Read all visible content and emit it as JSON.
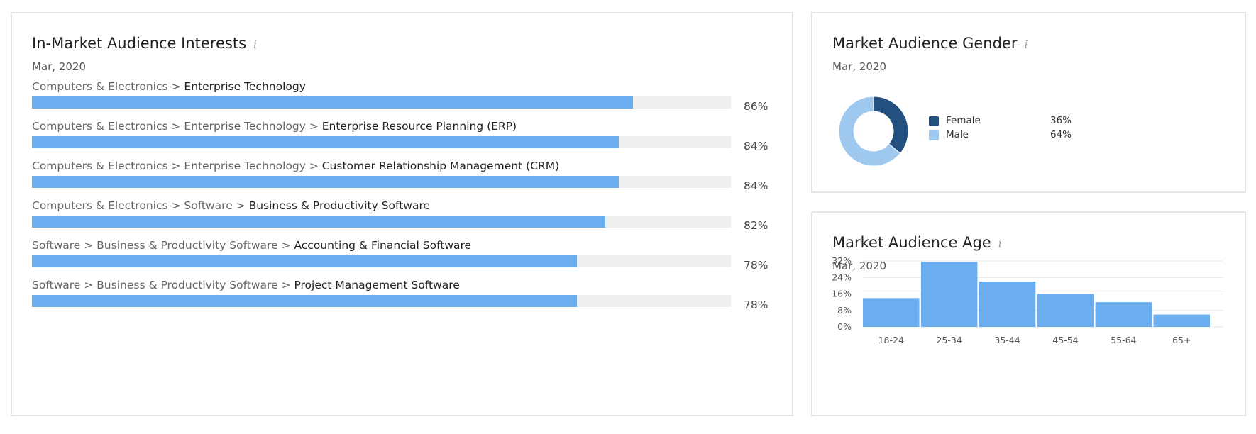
{
  "interests": {
    "title": "In-Market Audience Interests",
    "info_icon": "i",
    "date": "Mar, 2020",
    "rows": [
      {
        "path": [
          "Computers & Electronics"
        ],
        "leaf": "Enterprise Technology",
        "value": 86,
        "label": "86%"
      },
      {
        "path": [
          "Computers & Electronics",
          "Enterprise Technology"
        ],
        "leaf": "Enterprise Resource Planning (ERP)",
        "value": 84,
        "label": "84%"
      },
      {
        "path": [
          "Computers & Electronics",
          "Enterprise Technology"
        ],
        "leaf": "Customer Relationship Management (CRM)",
        "value": 84,
        "label": "84%"
      },
      {
        "path": [
          "Computers & Electronics",
          "Software"
        ],
        "leaf": "Business & Productivity Software",
        "value": 82,
        "label": "82%"
      },
      {
        "path": [
          "Software",
          "Business & Productivity Software"
        ],
        "leaf": "Accounting & Financial Software",
        "value": 78,
        "label": "78%"
      },
      {
        "path": [
          "Software",
          "Business & Productivity Software"
        ],
        "leaf": "Project Management Software",
        "value": 78,
        "label": "78%"
      }
    ],
    "bar_color": "#6aaef0",
    "track_color": "#efefef"
  },
  "gender": {
    "title": "Market Audience Gender",
    "info_icon": "i",
    "date": "Mar, 2020",
    "legend": [
      {
        "name": "Female",
        "value_label": "36%",
        "color": "#24507f"
      },
      {
        "name": "Male",
        "value_label": "64%",
        "color": "#9fc8ee"
      }
    ]
  },
  "age": {
    "title": "Market Audience Age",
    "info_icon": "i",
    "date": "Mar, 2020"
  },
  "chart_data": [
    {
      "type": "bar",
      "orientation": "horizontal",
      "categories": [
        "Computers & Electronics > Enterprise Technology",
        "Computers & Electronics > Enterprise Technology > Enterprise Resource Planning (ERP)",
        "Computers & Electronics > Enterprise Technology > Customer Relationship Management (CRM)",
        "Computers & Electronics > Software > Business & Productivity Software",
        "Software > Business & Productivity Software > Accounting & Financial Software",
        "Software > Business & Productivity Software > Project Management Software"
      ],
      "values": [
        86,
        84,
        84,
        82,
        78,
        78
      ],
      "title": "In-Market Audience Interests",
      "subtitle": "Mar, 2020",
      "xlim": [
        0,
        100
      ]
    },
    {
      "type": "pie",
      "donut": true,
      "title": "Market Audience Gender",
      "subtitle": "Mar, 2020",
      "labels": [
        "Female",
        "Male"
      ],
      "values": [
        36,
        64
      ],
      "colors": [
        "#24507f",
        "#9fc8ee"
      ],
      "legend": "right"
    },
    {
      "type": "bar",
      "title": "Market Audience Age",
      "subtitle": "Mar, 2020",
      "categories": [
        "18-24",
        "25-34",
        "35-44",
        "45-54",
        "55-64",
        "65+"
      ],
      "values": [
        14,
        31.5,
        22,
        16,
        12,
        6
      ],
      "yticks": [
        "0%",
        "8%",
        "16%",
        "24%",
        "32%"
      ],
      "ylim": [
        0,
        32
      ],
      "grid": true,
      "color": "#6aaef0"
    }
  ]
}
